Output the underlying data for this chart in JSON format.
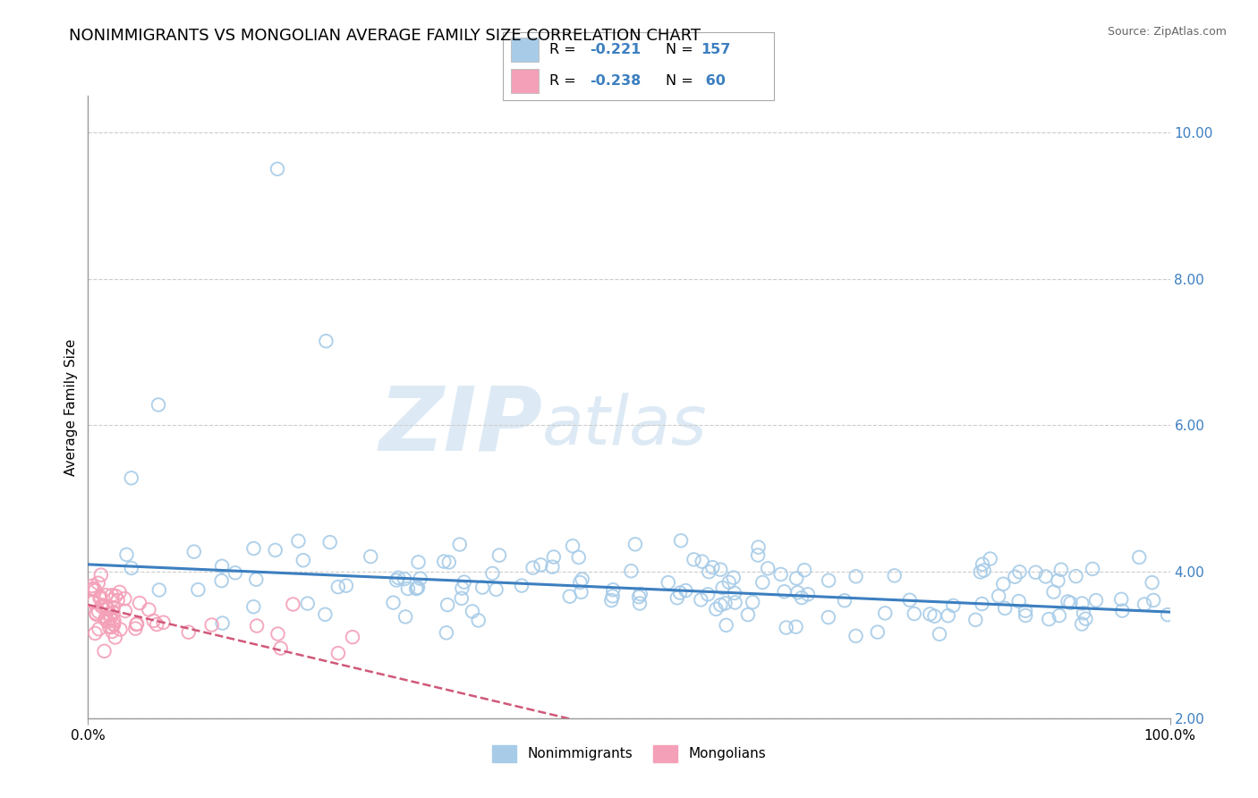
{
  "title": "NONIMMIGRANTS VS MONGOLIAN AVERAGE FAMILY SIZE CORRELATION CHART",
  "source": "Source: ZipAtlas.com",
  "ylabel": "Average Family Size",
  "xlim": [
    0,
    1.0
  ],
  "ylim": [
    2.0,
    10.5
  ],
  "yticks": [
    2.0,
    4.0,
    6.0,
    8.0,
    10.0
  ],
  "xtick_positions": [
    0.0,
    1.0
  ],
  "xticklabels": [
    "0.0%",
    "100.0%"
  ],
  "yticklabels_right": [
    "2.00",
    "4.00",
    "6.00",
    "8.00",
    "10.00"
  ],
  "blue_color": "#A8CCE8",
  "pink_color": "#F4A0B8",
  "blue_line_color": "#3C7FC0",
  "pink_line_color": "#D05878",
  "R_blue": -0.221,
  "N_blue": 157,
  "R_pink": -0.238,
  "N_pink": 60,
  "seed": 99,
  "background_color": "#FFFFFF",
  "grid_color": "#CCCCCC",
  "title_fontsize": 13,
  "axis_label_fontsize": 11,
  "tick_fontsize": 11,
  "legend_label1": "Nonimmigrants",
  "legend_label2": "Mongolians"
}
